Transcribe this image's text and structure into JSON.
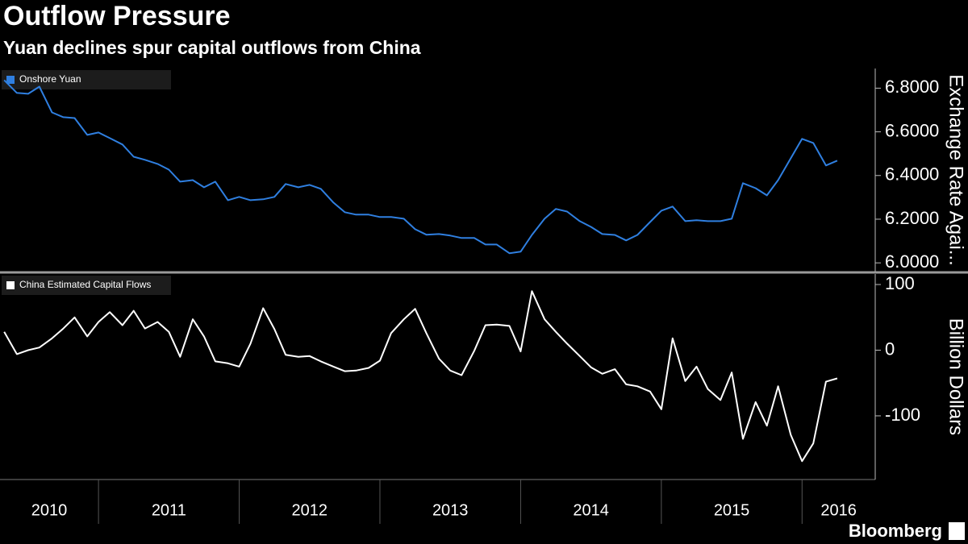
{
  "title": "Outflow Pressure",
  "subtitle": "Yuan declines spur capital outflows from China",
  "source": "Bloomberg",
  "chart_data": [
    {
      "type": "line",
      "ylabel": "Exchange Rate Agai...",
      "x": [
        2010.33,
        2010.42,
        2010.5,
        2010.58,
        2010.67,
        2010.75,
        2010.83,
        2010.92,
        2011.0,
        2011.08,
        2011.17,
        2011.25,
        2011.33,
        2011.42,
        2011.5,
        2011.58,
        2011.67,
        2011.75,
        2011.83,
        2011.92,
        2012.0,
        2012.08,
        2012.17,
        2012.25,
        2012.33,
        2012.42,
        2012.5,
        2012.58,
        2012.67,
        2012.75,
        2012.83,
        2012.92,
        2013.0,
        2013.08,
        2013.17,
        2013.25,
        2013.33,
        2013.42,
        2013.5,
        2013.58,
        2013.67,
        2013.75,
        2013.83,
        2013.92,
        2014.0,
        2014.08,
        2014.17,
        2014.25,
        2014.33,
        2014.42,
        2014.5,
        2014.58,
        2014.67,
        2014.75,
        2014.83,
        2014.92,
        2015.0,
        2015.08,
        2015.17,
        2015.25,
        2015.33,
        2015.42,
        2015.5,
        2015.58,
        2015.67,
        2015.75,
        2015.83,
        2015.92,
        2016.0,
        2016.08,
        2016.17,
        2016.25
      ],
      "series": [
        {
          "name": "Onshore Yuan",
          "color": "#2f7fe0",
          "axis": "y2",
          "values": [
            6.837,
            6.778,
            6.774,
            6.807,
            6.689,
            6.667,
            6.663,
            6.586,
            6.597,
            6.571,
            6.542,
            6.486,
            6.472,
            6.453,
            6.427,
            6.372,
            6.379,
            6.346,
            6.372,
            6.287,
            6.302,
            6.287,
            6.291,
            6.302,
            6.361,
            6.346,
            6.357,
            6.339,
            6.276,
            6.232,
            6.221,
            6.221,
            6.21,
            6.21,
            6.202,
            6.154,
            6.129,
            6.132,
            6.125,
            6.114,
            6.114,
            6.084,
            6.084,
            6.044,
            6.051,
            6.128,
            6.202,
            6.247,
            6.235,
            6.191,
            6.165,
            6.132,
            6.128,
            6.103,
            6.128,
            6.187,
            6.239,
            6.258,
            6.191,
            6.195,
            6.191,
            6.191,
            6.202,
            6.365,
            6.342,
            6.309,
            6.379,
            6.479,
            6.568,
            6.549,
            6.446,
            6.468
          ]
        }
      ],
      "xlim": [
        2010.3,
        2016.52
      ],
      "y2lim": [
        5.96,
        6.89
      ],
      "y2ticks": [
        {
          "value": 6.0,
          "label": "6.0000"
        },
        {
          "value": 6.2,
          "label": "6.2000"
        },
        {
          "value": 6.4,
          "label": "6.4000"
        },
        {
          "value": 6.6,
          "label": "6.6000"
        },
        {
          "value": 6.8,
          "label": "6.8000"
        }
      ],
      "grid": false,
      "legend": "top-left"
    },
    {
      "type": "line",
      "ylabel": "Billion Dollars",
      "x": [
        2010.33,
        2010.42,
        2010.5,
        2010.58,
        2010.67,
        2010.75,
        2010.83,
        2010.92,
        2011.0,
        2011.08,
        2011.17,
        2011.25,
        2011.33,
        2011.42,
        2011.5,
        2011.58,
        2011.67,
        2011.75,
        2011.83,
        2011.92,
        2012.0,
        2012.08,
        2012.17,
        2012.25,
        2012.33,
        2012.42,
        2012.5,
        2012.58,
        2012.67,
        2012.75,
        2012.83,
        2012.92,
        2013.0,
        2013.08,
        2013.17,
        2013.25,
        2013.33,
        2013.42,
        2013.5,
        2013.58,
        2013.67,
        2013.75,
        2013.83,
        2013.92,
        2014.0,
        2014.08,
        2014.17,
        2014.25,
        2014.33,
        2014.42,
        2014.5,
        2014.58,
        2014.67,
        2014.75,
        2014.83,
        2014.92,
        2015.0,
        2015.08,
        2015.17,
        2015.25,
        2015.33,
        2015.42,
        2015.5,
        2015.58,
        2015.67,
        2015.75,
        2015.83,
        2015.92,
        2016.0,
        2016.08,
        2016.17,
        2016.25
      ],
      "series": [
        {
          "name": "China Estimated Capital Flows",
          "color": "#ffffff",
          "axis": "y2",
          "values": [
            28,
            -6,
            0,
            4,
            18,
            33,
            50,
            21,
            43,
            58,
            38,
            60,
            33,
            43,
            28,
            -10,
            47,
            21,
            -17,
            -20,
            -25,
            10,
            64,
            32,
            -7,
            -10,
            -9,
            -17,
            -25,
            -32,
            -31,
            -27,
            -16,
            26,
            47,
            63,
            26,
            -13,
            -31,
            -38,
            -1,
            38,
            39,
            37,
            -2,
            90,
            47,
            28,
            10,
            -9,
            -26,
            -36,
            -29,
            -52,
            -55,
            -63,
            -90,
            18,
            -47,
            -25,
            -59,
            -76,
            -34,
            -135,
            -79,
            -115,
            -55,
            -129,
            -169,
            -142,
            -48,
            -43
          ]
        }
      ],
      "xlim": [
        2010.3,
        2016.52
      ],
      "xticks": [
        {
          "value": 2010,
          "label": "2010"
        },
        {
          "value": 2011,
          "label": "2011"
        },
        {
          "value": 2012,
          "label": "2012"
        },
        {
          "value": 2013,
          "label": "2013"
        },
        {
          "value": 2014,
          "label": "2014"
        },
        {
          "value": 2015,
          "label": "2015"
        },
        {
          "value": 2016,
          "label": "2016"
        }
      ],
      "y2lim": [
        -197,
        116
      ],
      "y2ticks": [
        -100,
        0,
        100
      ],
      "grid": false,
      "legend": "top-left"
    }
  ]
}
